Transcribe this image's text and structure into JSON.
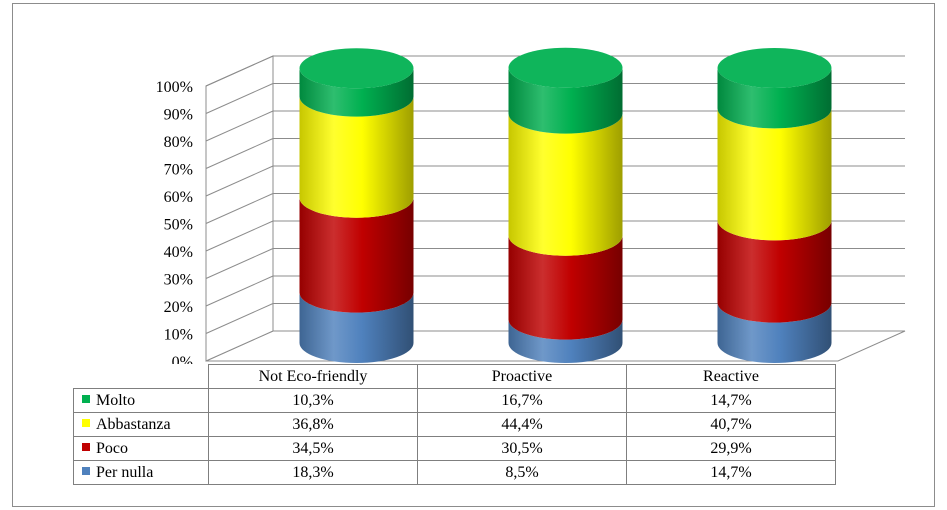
{
  "chart_data": {
    "type": "bar",
    "stacked": true,
    "percent_stacked": true,
    "style": "3d-cylinder",
    "categories": [
      "Not Eco-friendly",
      "Proactive",
      "Reactive"
    ],
    "series": [
      {
        "name": "Per nulla",
        "values": [
          18.3,
          8.5,
          14.7
        ],
        "labels": [
          "18,3%",
          "8,5%",
          "14,7%"
        ],
        "color": "#4f81bd"
      },
      {
        "name": "Poco",
        "values": [
          34.5,
          30.5,
          29.9
        ],
        "labels": [
          "34,5%",
          "30,5%",
          "29,9%"
        ],
        "color": "#c00000"
      },
      {
        "name": "Abbastanza",
        "values": [
          36.8,
          44.4,
          40.7
        ],
        "labels": [
          "36,8%",
          "44,4%",
          "40,7%"
        ],
        "color": "#ffff00"
      },
      {
        "name": "Molto",
        "values": [
          10.3,
          16.7,
          14.7
        ],
        "labels": [
          "10,3%",
          "16,7%",
          "14,7%"
        ],
        "color": "#00b050"
      }
    ],
    "yticks": [
      "0%",
      "10%",
      "20%",
      "30%",
      "40%",
      "50%",
      "60%",
      "70%",
      "80%",
      "90%",
      "100%"
    ],
    "ylim": [
      0,
      100
    ],
    "grid": true,
    "legend": "data-table"
  }
}
